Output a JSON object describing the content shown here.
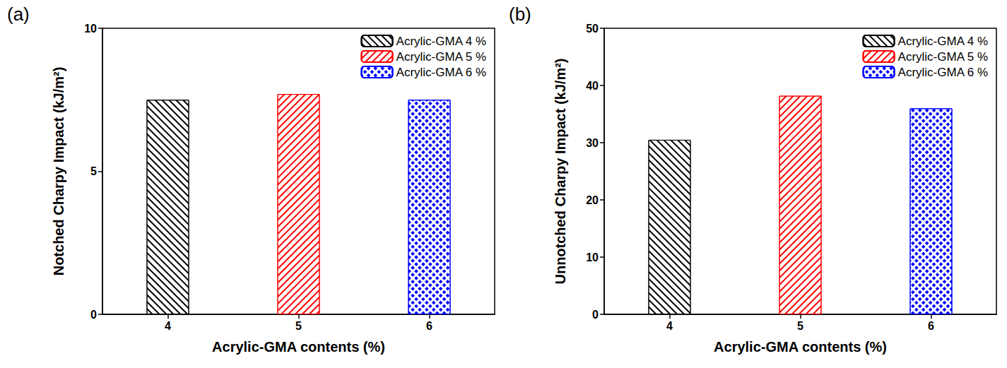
{
  "chart_data": [
    {
      "type": "bar",
      "title": "(a)",
      "x_label": "Acrylic-GMA contents (%)",
      "y_label": "Notched Charpy Impact (kJ/m²)",
      "categories": [
        "4",
        "5",
        "6"
      ],
      "series": [
        {
          "name": "Acrylic-GMA 4 %",
          "color": "#000000",
          "values": [
            7.5,
            null,
            null
          ]
        },
        {
          "name": "Acrylic-GMA 5 %",
          "color": "#ff0000",
          "values": [
            null,
            7.7,
            null
          ]
        },
        {
          "name": "Acrylic-GMA 6 %",
          "color": "#0000ff",
          "values": [
            null,
            null,
            7.5
          ]
        }
      ],
      "ylim": [
        0,
        10
      ],
      "yticks": [
        0,
        5,
        10
      ],
      "grid": false,
      "legend": "upper right"
    },
    {
      "type": "bar",
      "title": "(b)",
      "x_label": "Acrylic-GMA contents (%)",
      "y_label": "Unnotched Charpy Impact (kJ/m²)",
      "categories": [
        "4",
        "5",
        "6"
      ],
      "series": [
        {
          "name": "Acrylic-GMA 4 %",
          "color": "#000000",
          "values": [
            30.5,
            null,
            null
          ]
        },
        {
          "name": "Acrylic-GMA 5 %",
          "color": "#ff0000",
          "values": [
            null,
            38.2,
            null
          ]
        },
        {
          "name": "Acrylic-GMA 6 %",
          "color": "#0000ff",
          "values": [
            null,
            null,
            36
          ]
        }
      ],
      "ylim": [
        0,
        50
      ],
      "yticks": [
        0,
        10,
        20,
        30,
        40,
        50
      ],
      "grid": false,
      "legend": "upper right"
    }
  ]
}
